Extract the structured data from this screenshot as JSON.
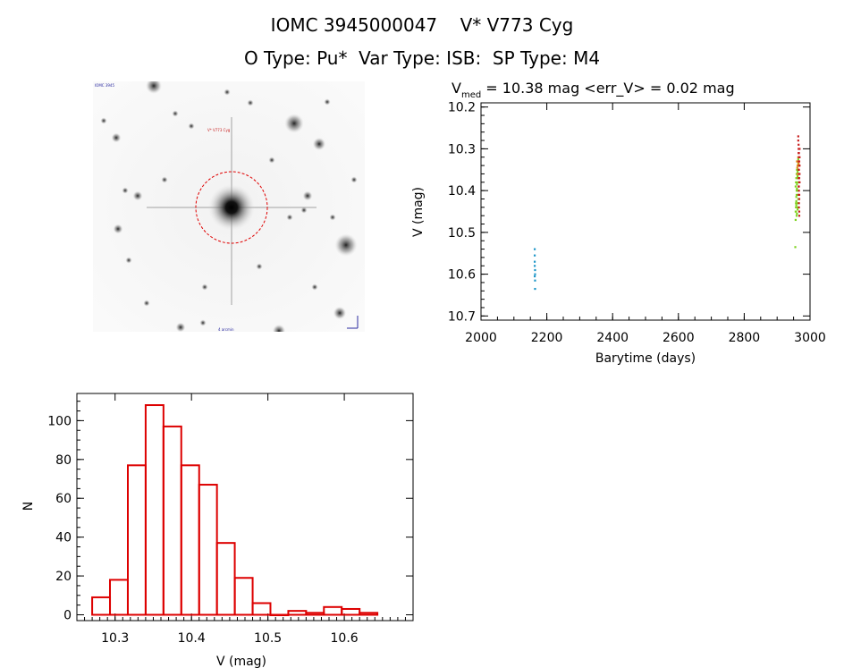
{
  "header": {
    "line1": "IOMC 3945000047    V* V773 Cyg",
    "line2": "O Type: Pu*  Var Type: ISB:  SP Type: M4"
  },
  "colors": {
    "hist": "#dd0000",
    "circle": "#e00000",
    "lc_red": "#c81e1e",
    "lc_green": "#7ed321",
    "lc_blue": "#1e96c8",
    "lc_orange": "#e08a1e"
  },
  "sky": {
    "labels": {
      "tl": "IOMC 3945",
      "name": "V* V773 Cyg",
      "bottom": "4 arcmin"
    }
  },
  "chart_data": [
    {
      "type": "scatter",
      "title": "V",
      "title_sub": "med",
      "title_rest": " = 10.38 mag <err_V> = 0.02 mag",
      "xlabel": "Barytime (days)",
      "ylabel": "V (mag)",
      "xlim": [
        2000,
        3000
      ],
      "ylim": [
        10.71,
        10.19
      ],
      "xticks": [
        2000,
        2200,
        2400,
        2600,
        2800,
        3000
      ],
      "yticks": [
        10.2,
        10.3,
        10.4,
        10.5,
        10.6,
        10.7
      ],
      "series": [
        {
          "color": "#1e96c8",
          "points": [
            [
              2163,
              10.54
            ],
            [
              2163,
              10.555
            ],
            [
              2163,
              10.57
            ],
            [
              2163,
              10.58
            ],
            [
              2164,
              10.59
            ],
            [
              2164,
              10.6
            ],
            [
              2163,
              10.605
            ],
            [
              2164,
              10.615
            ],
            [
              2164,
              10.635
            ]
          ]
        },
        {
          "color": "#7ed321",
          "points": [
            [
              2955,
              10.535
            ],
            [
              2956,
              10.47
            ],
            [
              2956,
              10.45
            ],
            [
              2957,
              10.44
            ],
            [
              2957,
              10.43
            ],
            [
              2958,
              10.425
            ],
            [
              2958,
              10.415
            ],
            [
              2959,
              10.41
            ],
            [
              2959,
              10.4
            ],
            [
              2960,
              10.395
            ],
            [
              2960,
              10.385
            ],
            [
              2961,
              10.38
            ],
            [
              2961,
              10.37
            ],
            [
              2962,
              10.365
            ],
            [
              2962,
              10.355
            ],
            [
              2963,
              10.35
            ],
            [
              2963,
              10.34
            ],
            [
              2964,
              10.335
            ],
            [
              2964,
              10.325
            ],
            [
              2959,
              10.46
            ],
            [
              2960,
              10.455
            ],
            [
              2957,
              10.45
            ],
            [
              2962,
              10.445
            ],
            [
              2963,
              10.44
            ],
            [
              2958,
              10.435
            ],
            [
              2961,
              10.43
            ],
            [
              2964,
              10.42
            ],
            [
              2963,
              10.41
            ],
            [
              2962,
              10.4
            ],
            [
              2956,
              10.39
            ],
            [
              2957,
              10.38
            ],
            [
              2958,
              10.37
            ],
            [
              2959,
              10.36
            ],
            [
              2960,
              10.35
            ]
          ]
        },
        {
          "color": "#e08a1e",
          "points": [
            [
              2962,
              10.34
            ],
            [
              2963,
              10.33
            ],
            [
              2964,
              10.32
            ],
            [
              2965,
              10.335
            ],
            [
              2961,
              10.345
            ],
            [
              2960,
              10.33
            ],
            [
              2966,
              10.34
            ],
            [
              2962,
              10.36
            ]
          ]
        },
        {
          "color": "#c81e1e",
          "points": [
            [
              2964,
              10.27
            ],
            [
              2964,
              10.28
            ],
            [
              2965,
              10.29
            ],
            [
              2965,
              10.3
            ],
            [
              2966,
              10.31
            ],
            [
              2966,
              10.32
            ],
            [
              2967,
              10.33
            ],
            [
              2967,
              10.34
            ],
            [
              2966,
              10.35
            ],
            [
              2966,
              10.36
            ],
            [
              2967,
              10.37
            ],
            [
              2967,
              10.38
            ],
            [
              2966,
              10.39
            ],
            [
              2966,
              10.4
            ],
            [
              2967,
              10.41
            ],
            [
              2967,
              10.42
            ],
            [
              2966,
              10.43
            ],
            [
              2966,
              10.44
            ],
            [
              2967,
              10.45
            ],
            [
              2967,
              10.46
            ],
            [
              2965,
              10.31
            ],
            [
              2965,
              10.33
            ],
            [
              2965,
              10.35
            ],
            [
              2965,
              10.37
            ],
            [
              2965,
              10.39
            ],
            [
              2965,
              10.41
            ],
            [
              2968,
              10.3
            ],
            [
              2968,
              10.32
            ],
            [
              2968,
              10.34
            ],
            [
              2968,
              10.36
            ],
            [
              2968,
              10.38
            ]
          ]
        }
      ]
    },
    {
      "type": "bar",
      "title": "",
      "xlabel": "V (mag)",
      "ylabel": "N",
      "xlim": [
        10.25,
        10.69
      ],
      "ylim": [
        -3,
        114
      ],
      "xticks": [
        10.3,
        10.4,
        10.5,
        10.6
      ],
      "yticks": [
        0,
        20,
        40,
        60,
        80,
        100
      ],
      "bin_width": 0.02333,
      "bins": [
        {
          "left": 10.27,
          "count": 9
        },
        {
          "left": 10.2933,
          "count": 18
        },
        {
          "left": 10.3167,
          "count": 77
        },
        {
          "left": 10.34,
          "count": 108
        },
        {
          "left": 10.3633,
          "count": 97
        },
        {
          "left": 10.3867,
          "count": 77
        },
        {
          "left": 10.41,
          "count": 67
        },
        {
          "left": 10.4333,
          "count": 37
        },
        {
          "left": 10.4567,
          "count": 19
        },
        {
          "left": 10.48,
          "count": 6
        },
        {
          "left": 10.5033,
          "count": 0
        },
        {
          "left": 10.5267,
          "count": 2
        },
        {
          "left": 10.55,
          "count": 1
        },
        {
          "left": 10.5733,
          "count": 4
        },
        {
          "left": 10.5967,
          "count": 3
        },
        {
          "left": 10.62,
          "count": 1
        }
      ]
    }
  ]
}
